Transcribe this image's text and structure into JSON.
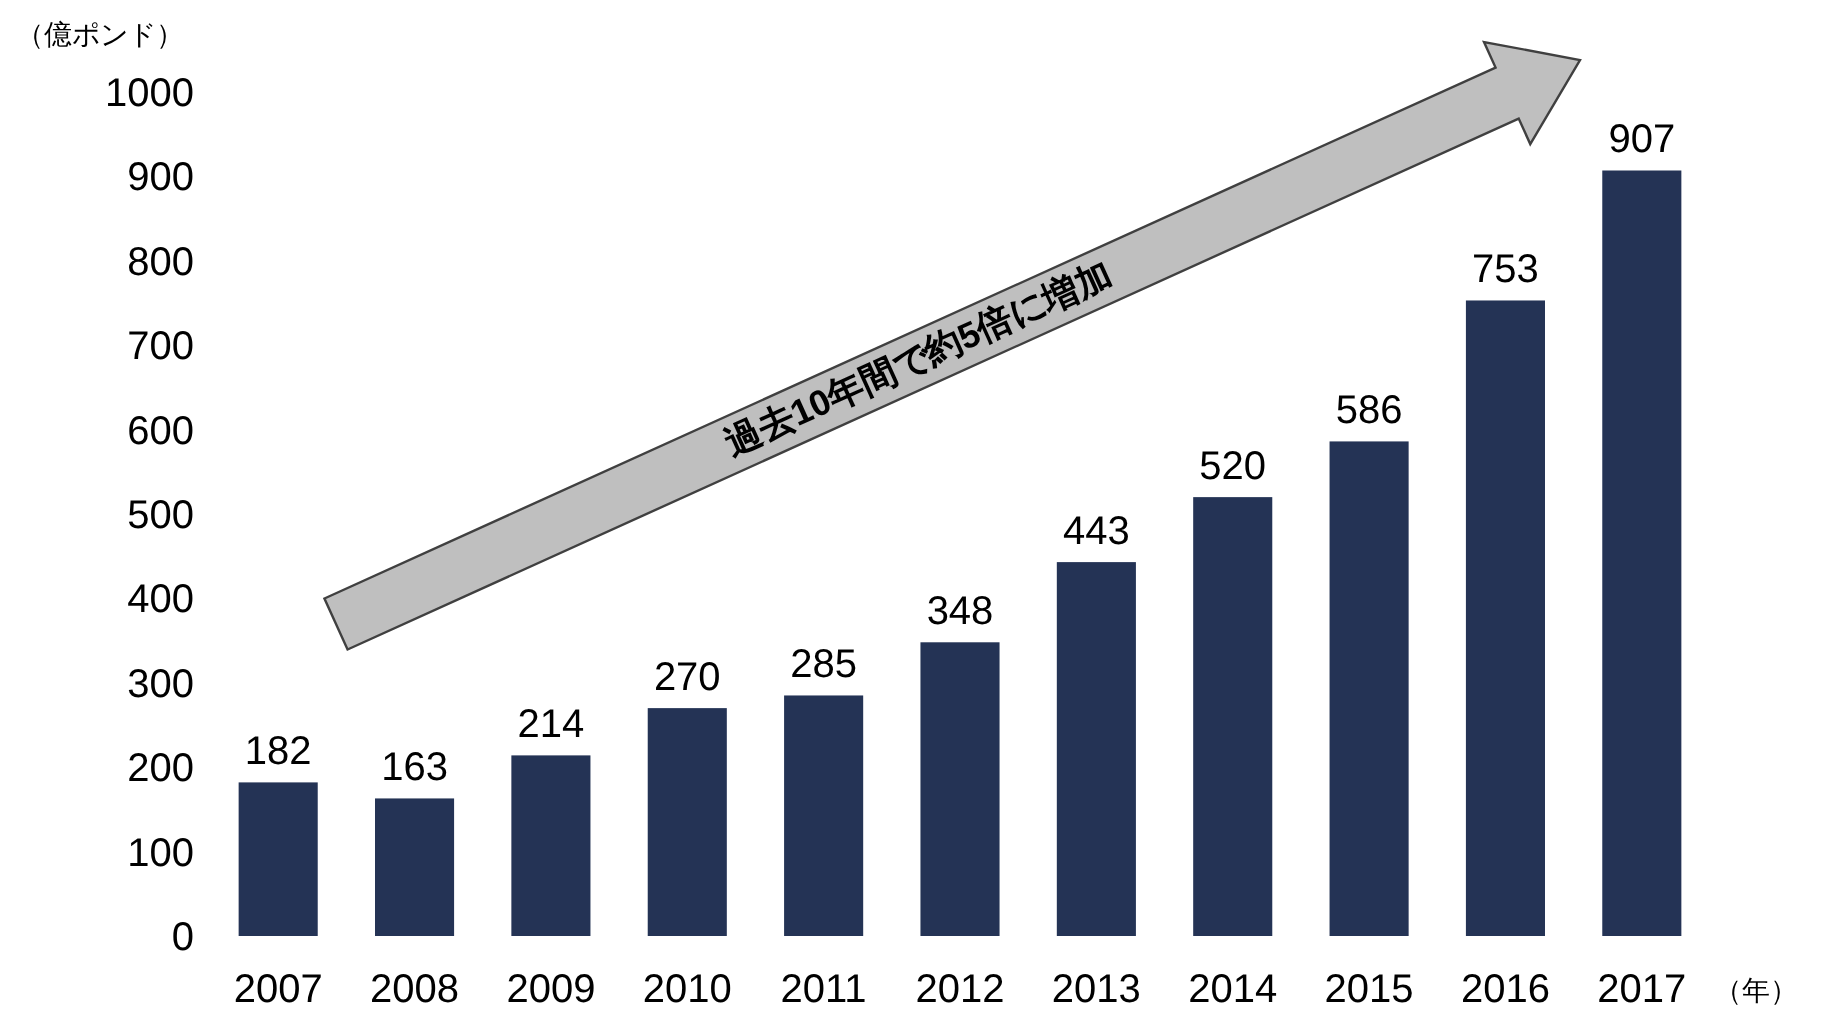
{
  "chart_data": {
    "type": "bar",
    "ylabel": "（億ポンド）",
    "xlabel": "（年）",
    "categories": [
      "2007",
      "2008",
      "2009",
      "2010",
      "2011",
      "2012",
      "2013",
      "2014",
      "2015",
      "2016",
      "2017"
    ],
    "values": [
      182,
      163,
      214,
      270,
      285,
      348,
      443,
      520,
      586,
      753,
      907
    ],
    "color": "#243355",
    "ylim": [
      0,
      1000
    ],
    "yticks": [
      0,
      100,
      200,
      300,
      400,
      500,
      600,
      700,
      800,
      900,
      1000
    ],
    "grid": false,
    "data_labels": true,
    "annotations": [
      "過去10年間で約5倍に増加"
    ]
  }
}
